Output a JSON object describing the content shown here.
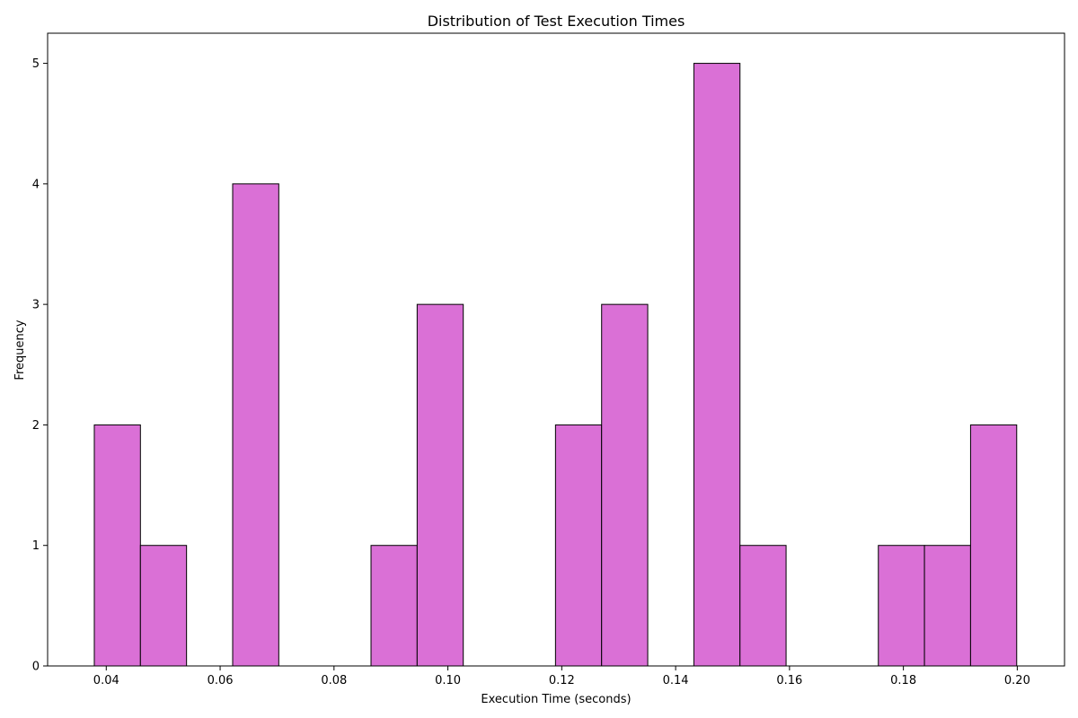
{
  "chart_data": {
    "type": "bar",
    "title": "Distribution of Test Execution Times",
    "xlabel": "Execution Time (seconds)",
    "ylabel": "Frequency",
    "xlim": [
      0.0297,
      0.2083
    ],
    "ylim": [
      0,
      5.25
    ],
    "xticks": [
      0.04,
      0.06,
      0.08,
      0.1,
      0.12,
      0.14,
      0.16,
      0.18,
      0.2
    ],
    "xtick_labels": [
      "0.04",
      "0.06",
      "0.08",
      "0.10",
      "0.12",
      "0.14",
      "0.16",
      "0.18",
      "0.20"
    ],
    "yticks": [
      0,
      1,
      2,
      3,
      4,
      5
    ],
    "ytick_labels": [
      "0",
      "1",
      "2",
      "3",
      "4",
      "5"
    ],
    "grid": false,
    "bar_color": "#da70d6",
    "edge_color": "#000000",
    "bin_edges": [
      0.0379,
      0.046,
      0.0541,
      0.0622,
      0.0703,
      0.0784,
      0.0865,
      0.0946,
      0.1027,
      0.1108,
      0.1189,
      0.127,
      0.1351,
      0.1432,
      0.1513,
      0.1594,
      0.1675,
      0.1756,
      0.1837,
      0.1918,
      0.1999
    ],
    "values": [
      2,
      1,
      0,
      4,
      0,
      0,
      1,
      3,
      0,
      0,
      2,
      3,
      0,
      5,
      1,
      0,
      0,
      1,
      1,
      2
    ]
  }
}
